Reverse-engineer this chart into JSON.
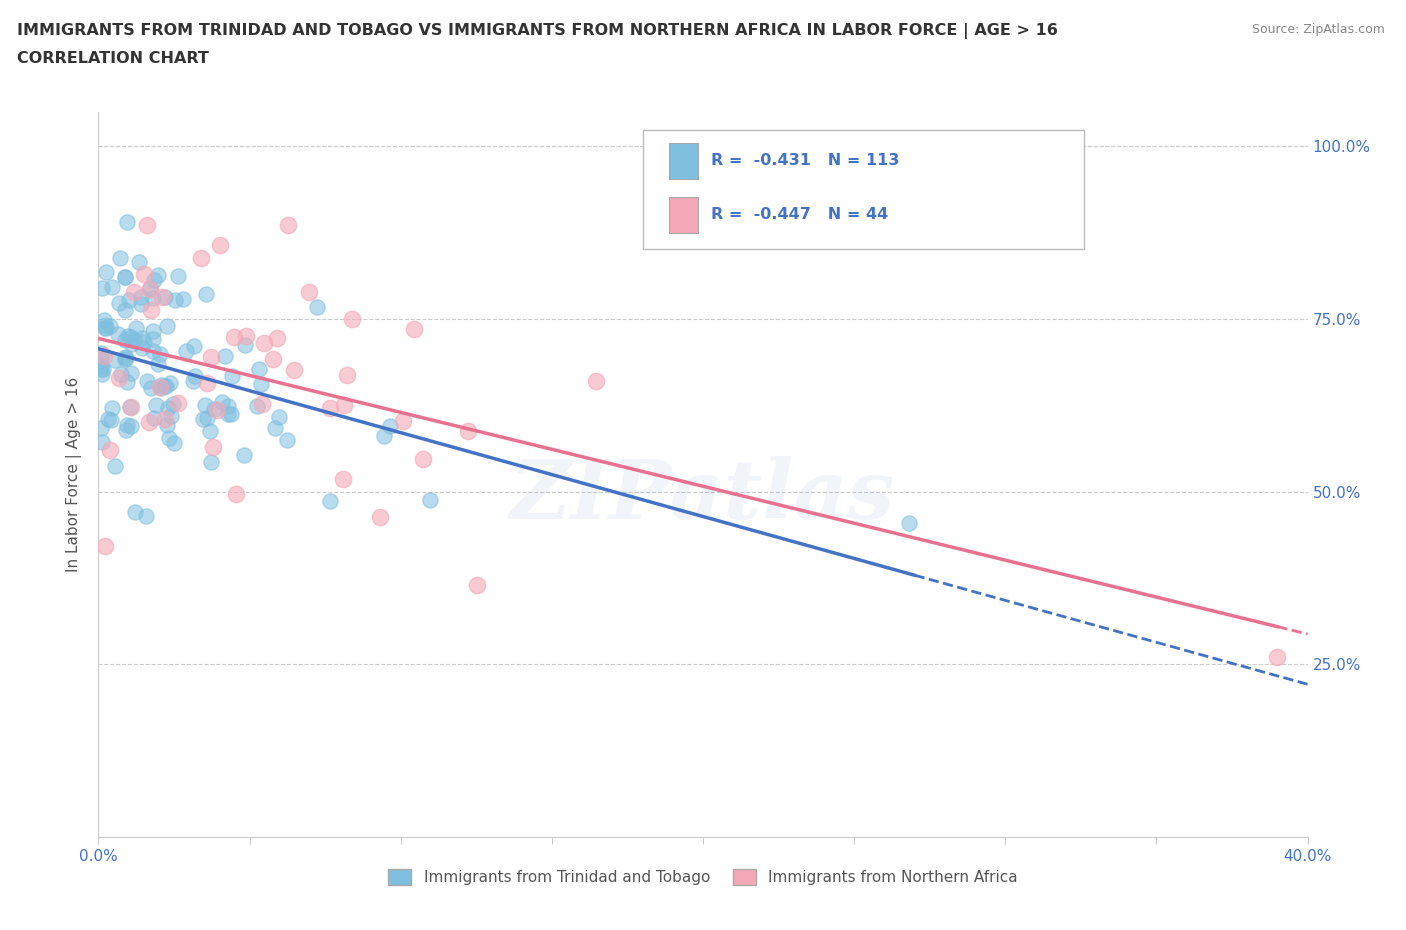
{
  "title_line1": "IMMIGRANTS FROM TRINIDAD AND TOBAGO VS IMMIGRANTS FROM NORTHERN AFRICA IN LABOR FORCE | AGE > 16",
  "title_line2": "CORRELATION CHART",
  "source_text": "Source: ZipAtlas.com",
  "ylabel": "In Labor Force | Age > 16",
  "xlim": [
    0.0,
    0.4
  ],
  "ylim": [
    0.0,
    1.05
  ],
  "xtick_positions": [
    0.0,
    0.05,
    0.1,
    0.15,
    0.2,
    0.25,
    0.3,
    0.35,
    0.4
  ],
  "xticklabels": [
    "0.0%",
    "",
    "",
    "",
    "",
    "",
    "",
    "",
    "40.0%"
  ],
  "ytick_positions": [
    0.0,
    0.25,
    0.5,
    0.75,
    1.0
  ],
  "yticklabels_right": [
    "",
    "25.0%",
    "50.0%",
    "75.0%",
    "100.0%"
  ],
  "trinidad_R": -0.431,
  "trinidad_N": 113,
  "northern_africa_R": -0.447,
  "northern_africa_N": 44,
  "trinidad_color": "#7fbfdf",
  "northern_africa_color": "#f4a8b8",
  "trinidad_line_color": "#4472c4",
  "northern_africa_line_color": "#e87090",
  "watermark": "ZIPatlas",
  "legend_label1": "R =  -0.431   N = 113",
  "legend_label2": "R =  -0.447   N = 44",
  "legend_label_trinidad": "Immigrants from Trinidad and Tobago",
  "legend_label_northern": "Immigrants from Northern Africa",
  "grid_color": "#cccccc",
  "spine_color": "#cccccc"
}
